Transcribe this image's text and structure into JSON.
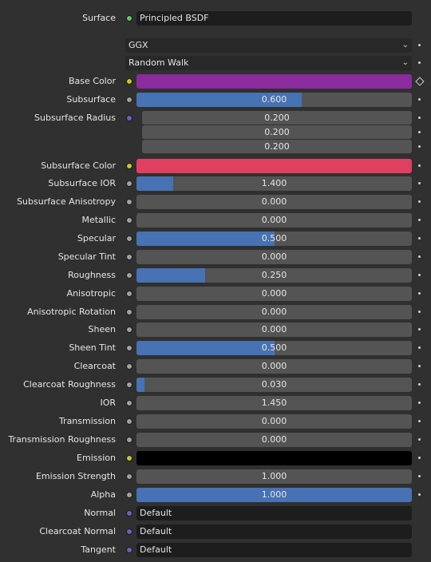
{
  "surface": {
    "label": "Surface",
    "value": "Principled BSDF"
  },
  "distribution": {
    "value": "GGX"
  },
  "subsurface_method": {
    "value": "Random Walk"
  },
  "colors": {
    "base_color": "#8a2b9e",
    "subsurface_color": "#e04060",
    "emission": "#000000",
    "accent": "#4772b3"
  },
  "props": {
    "base_color_label": "Base Color",
    "subsurface_label": "Subsurface",
    "subsurface_value": "0.600",
    "subsurface_fraction": 0.6,
    "subsurface_radius_label": "Subsurface Radius",
    "subsurface_radius": [
      "0.200",
      "0.200",
      "0.200"
    ],
    "subsurface_color_label": "Subsurface Color",
    "subsurface_ior_label": "Subsurface IOR",
    "subsurface_ior_value": "1.400",
    "subsurface_ior_fraction": 0.133,
    "subsurface_anisotropy_label": "Subsurface Anisotropy",
    "subsurface_anisotropy_value": "0.000",
    "metallic_label": "Metallic",
    "metallic_value": "0.000",
    "specular_label": "Specular",
    "specular_value": "0.500",
    "specular_fraction": 0.5,
    "specular_tint_label": "Specular Tint",
    "specular_tint_value": "0.000",
    "roughness_label": "Roughness",
    "roughness_value": "0.250",
    "roughness_fraction": 0.25,
    "anisotropic_label": "Anisotropic",
    "anisotropic_value": "0.000",
    "anisotropic_rotation_label": "Anisotropic Rotation",
    "anisotropic_rotation_value": "0.000",
    "sheen_label": "Sheen",
    "sheen_value": "0.000",
    "sheen_tint_label": "Sheen Tint",
    "sheen_tint_value": "0.500",
    "sheen_tint_fraction": 0.5,
    "clearcoat_label": "Clearcoat",
    "clearcoat_value": "0.000",
    "clearcoat_roughness_label": "Clearcoat Roughness",
    "clearcoat_roughness_value": "0.030",
    "clearcoat_roughness_fraction": 0.03,
    "ior_label": "IOR",
    "ior_value": "1.450",
    "transmission_label": "Transmission",
    "transmission_value": "0.000",
    "transmission_roughness_label": "Transmission Roughness",
    "transmission_roughness_value": "0.000",
    "emission_label": "Emission",
    "emission_strength_label": "Emission Strength",
    "emission_strength_value": "1.000",
    "alpha_label": "Alpha",
    "alpha_value": "1.000",
    "alpha_fraction": 1.0,
    "normal_label": "Normal",
    "normal_value": "Default",
    "clearcoat_normal_label": "Clearcoat Normal",
    "clearcoat_normal_value": "Default",
    "tangent_label": "Tangent",
    "tangent_value": "Default"
  }
}
